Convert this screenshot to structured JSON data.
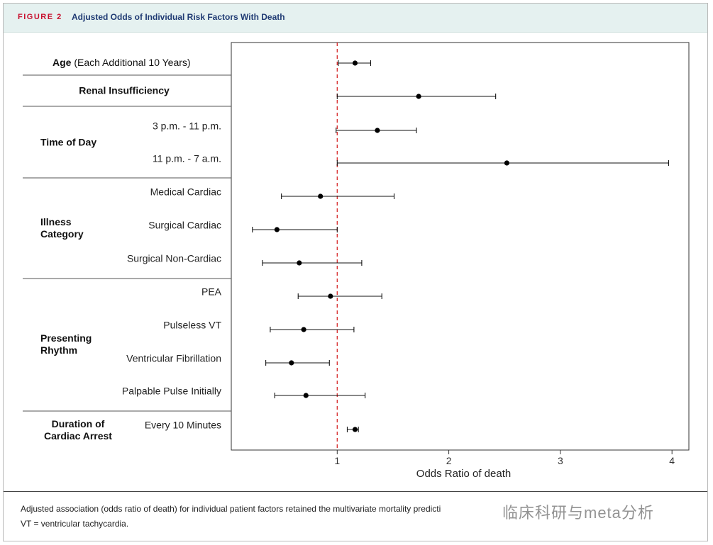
{
  "figure": {
    "label": "FIGURE 2",
    "title": "Adjusted Odds of Individual Risk Factors With Death"
  },
  "chart_data": {
    "type": "forest",
    "xlabel": "Odds Ratio of death",
    "xlim": [
      0.0,
      4.15
    ],
    "xticks": [
      1,
      2,
      3,
      4
    ],
    "reference_line": 1,
    "groups": [
      {
        "name": "Age",
        "name_suffix": "(Each Additional 10 Years)"
      },
      {
        "name": "Renal Insufficiency"
      },
      {
        "name": "Time of Day"
      },
      {
        "name": "Illness\nCategory"
      },
      {
        "name": "Presenting\nRhythm"
      },
      {
        "name": "Duration of\nCardiac Arrest"
      }
    ],
    "rows": [
      {
        "group": 0,
        "label": "",
        "or": 1.16,
        "lo": 1.01,
        "hi": 1.3
      },
      {
        "group": 1,
        "label": "",
        "or": 1.73,
        "lo": 1.0,
        "hi": 2.42
      },
      {
        "group": 2,
        "label": "3 p.m. - 11 p.m.",
        "or": 1.36,
        "lo": 0.99,
        "hi": 1.71
      },
      {
        "group": 2,
        "label": "11 p.m. - 7 a.m.",
        "or": 2.52,
        "lo": 1.0,
        "hi": 3.97
      },
      {
        "group": 3,
        "label": "Medical Cardiac",
        "or": 0.85,
        "lo": 0.5,
        "hi": 1.51
      },
      {
        "group": 3,
        "label": "Surgical Cardiac",
        "or": 0.46,
        "lo": 0.24,
        "hi": 1.0
      },
      {
        "group": 3,
        "label": "Surgical Non-Cardiac",
        "or": 0.66,
        "lo": 0.33,
        "hi": 1.22
      },
      {
        "group": 4,
        "label": "PEA",
        "or": 0.94,
        "lo": 0.65,
        "hi": 1.4
      },
      {
        "group": 4,
        "label": "Pulseless VT",
        "or": 0.7,
        "lo": 0.4,
        "hi": 1.15
      },
      {
        "group": 4,
        "label": "Ventricular Fibrillation",
        "or": 0.59,
        "lo": 0.36,
        "hi": 0.93
      },
      {
        "group": 4,
        "label": "Palpable Pulse Initially",
        "or": 0.72,
        "lo": 0.44,
        "hi": 1.25
      },
      {
        "group": 5,
        "label": "Every 10 Minutes",
        "or": 1.16,
        "lo": 1.09,
        "hi": 1.19
      }
    ]
  },
  "caption": {
    "line1": "Adjusted association (odds ratio of death) for individual patient factors retained the multivariate mortality predicti",
    "line2": "VT = ventricular tachycardia."
  },
  "watermark": "临床科研与meta分析"
}
